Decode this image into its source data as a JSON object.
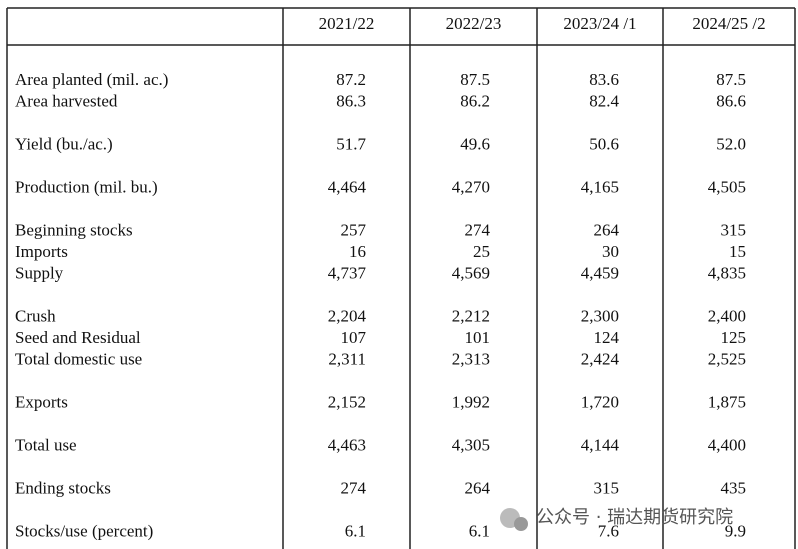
{
  "table": {
    "columns": [
      "2021/22",
      "2022/23",
      "2023/24 /1",
      "2024/25 /2"
    ],
    "groups": [
      [
        {
          "label": "Area planted (mil. ac.)",
          "values": [
            "87.2",
            "87.5",
            "83.6",
            "87.5"
          ]
        },
        {
          "label": "Area harvested",
          "values": [
            "86.3",
            "86.2",
            "82.4",
            "86.6"
          ]
        }
      ],
      [
        {
          "label": "Yield (bu./ac.)",
          "values": [
            "51.7",
            "49.6",
            "50.6",
            "52.0"
          ]
        }
      ],
      [
        {
          "label": "Production (mil. bu.)",
          "values": [
            "4,464",
            "4,270",
            "4,165",
            "4,505"
          ]
        }
      ],
      [
        {
          "label": "Beginning stocks",
          "values": [
            "257",
            "274",
            "264",
            "315"
          ]
        },
        {
          "label": "Imports",
          "values": [
            "16",
            "25",
            "30",
            "15"
          ]
        },
        {
          "label": "Supply",
          "values": [
            "4,737",
            "4,569",
            "4,459",
            "4,835"
          ]
        }
      ],
      [
        {
          "label": "Crush",
          "values": [
            "2,204",
            "2,212",
            "2,300",
            "2,400"
          ]
        },
        {
          "label": "Seed and Residual",
          "values": [
            "107",
            "101",
            "124",
            "125"
          ]
        },
        {
          "label": "Total domestic use",
          "values": [
            "2,311",
            "2,313",
            "2,424",
            "2,525"
          ]
        }
      ],
      [
        {
          "label": "Exports",
          "values": [
            "2,152",
            "1,992",
            "1,720",
            "1,875"
          ]
        }
      ],
      [
        {
          "label": "Total use",
          "values": [
            "4,463",
            "4,305",
            "4,144",
            "4,400"
          ]
        }
      ],
      [
        {
          "label": "Ending stocks",
          "values": [
            "274",
            "264",
            "315",
            "435"
          ]
        }
      ],
      [
        {
          "label": "Stocks/use (percent)",
          "values": [
            "6.1",
            "6.1",
            "7.6",
            "9.9"
          ]
        }
      ]
    ]
  },
  "watermark": "公众号 · 瑞达期货研究院"
}
